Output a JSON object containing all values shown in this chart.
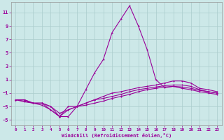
{
  "background_color": "#cce8e8",
  "grid_color": "#aacccc",
  "line_color": "#990099",
  "xlim": [
    -0.5,
    23.5
  ],
  "ylim": [
    -5.8,
    12.5
  ],
  "xticks": [
    0,
    1,
    2,
    3,
    4,
    5,
    6,
    7,
    8,
    9,
    10,
    11,
    12,
    13,
    14,
    15,
    16,
    17,
    18,
    19,
    20,
    21,
    22,
    23
  ],
  "yticks": [
    -5,
    -3,
    -1,
    1,
    3,
    5,
    7,
    9,
    11
  ],
  "xlabel": "Windchill (Refroidissement éolien,°C)",
  "line1_x": [
    0,
    1,
    2,
    3,
    4,
    5,
    6,
    7,
    8,
    9,
    10,
    11,
    12,
    13,
    14,
    15,
    16,
    17,
    18,
    19,
    20,
    21,
    22,
    23
  ],
  "line1_y": [
    -2.0,
    -2.3,
    -2.5,
    -2.5,
    -3.0,
    -4.5,
    -3.0,
    -3.0,
    -0.5,
    2.0,
    4.0,
    8.0,
    10.0,
    12.0,
    9.0,
    5.5,
    1.0,
    -0.2,
    0.0,
    -0.3,
    -0.5,
    -0.8,
    -1.0,
    -1.2
  ],
  "line2_x": [
    0,
    1,
    2,
    3,
    4,
    5,
    6,
    7,
    8,
    9,
    10,
    11,
    12,
    13,
    14,
    15,
    16,
    17,
    18,
    19,
    20,
    21,
    22,
    23
  ],
  "line2_y": [
    -2.0,
    -2.0,
    -2.5,
    -2.5,
    -3.5,
    -4.5,
    -4.5,
    -3.0,
    -2.5,
    -2.0,
    -1.5,
    -1.0,
    -0.8,
    -0.5,
    -0.2,
    0.0,
    0.2,
    0.5,
    0.8,
    0.8,
    0.5,
    -0.3,
    -0.5,
    -0.8
  ],
  "line3_x": [
    0,
    1,
    2,
    3,
    4,
    5,
    6,
    7,
    8,
    9,
    10,
    11,
    12,
    13,
    14,
    15,
    16,
    17,
    18,
    19,
    20,
    21,
    22,
    23
  ],
  "line3_y": [
    -2.0,
    -2.0,
    -2.5,
    -2.5,
    -3.0,
    -4.0,
    -3.5,
    -3.0,
    -2.5,
    -2.0,
    -1.8,
    -1.5,
    -1.2,
    -0.8,
    -0.5,
    -0.3,
    -0.1,
    0.1,
    0.2,
    0.2,
    0.0,
    -0.5,
    -0.8,
    -1.0
  ],
  "line4_x": [
    0,
    1,
    2,
    3,
    4,
    5,
    6,
    7,
    8,
    9,
    10,
    11,
    12,
    13,
    14,
    15,
    16,
    17,
    18,
    19,
    20,
    21,
    22,
    23
  ],
  "line4_y": [
    -2.0,
    -2.2,
    -2.5,
    -2.8,
    -3.5,
    -4.5,
    -3.5,
    -3.0,
    -2.8,
    -2.5,
    -2.2,
    -1.8,
    -1.5,
    -1.2,
    -0.8,
    -0.5,
    -0.3,
    -0.1,
    0.0,
    -0.1,
    -0.3,
    -0.6,
    -0.8,
    -1.0
  ]
}
